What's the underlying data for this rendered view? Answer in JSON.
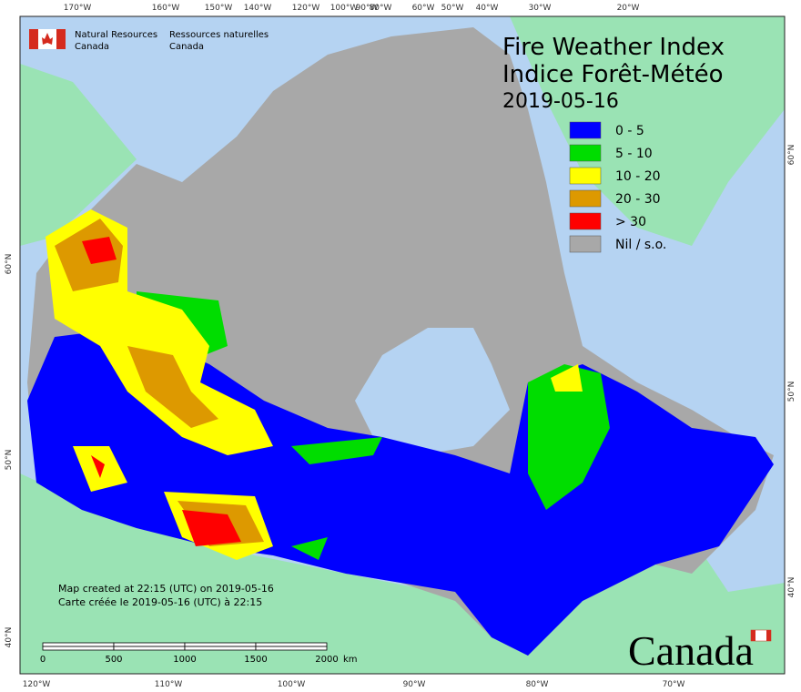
{
  "header": {
    "agency_en": [
      "Natural Resources",
      "Canada"
    ],
    "agency_fr": [
      "Ressources naturelles",
      "Canada"
    ]
  },
  "title": {
    "en": "Fire Weather Index",
    "fr": "Indice Forêt-Météo",
    "date": "2019-05-16"
  },
  "legend": [
    {
      "label": "0 - 5",
      "color": "#0000ff"
    },
    {
      "label": "5 - 10",
      "color": "#00dd00"
    },
    {
      "label": "10 - 20",
      "color": "#ffff00"
    },
    {
      "label": "20 - 30",
      "color": "#dd9900"
    },
    {
      "label": "> 30",
      "color": "#ff0000"
    },
    {
      "label": "Nil / s.o.",
      "color": "#a8a8a8"
    }
  ],
  "graticule": {
    "top": [
      "170°W",
      "160°W",
      "150°W",
      "140°W",
      "120°W",
      "100°W",
      "90°W",
      "80°W",
      "60°W",
      "50°W",
      "40°W",
      "30°W",
      "20°W"
    ],
    "bottom": [
      "120°W",
      "110°W",
      "100°W",
      "90°W",
      "80°W",
      "70°W"
    ],
    "left": [
      "60°N",
      "50°N",
      "40°N"
    ],
    "right": [
      "60°N",
      "50°N",
      "40°N"
    ]
  },
  "footer": {
    "created_en": "Map created at 22:15 (UTC) on 2019-05-16",
    "created_fr": "Carte créée le 2019-05-16 (UTC) à 22:15"
  },
  "scale_bar": {
    "labels": [
      "0",
      "500",
      "1000",
      "1500",
      "2000"
    ],
    "unit": "km"
  },
  "wordmark": "Canada"
}
